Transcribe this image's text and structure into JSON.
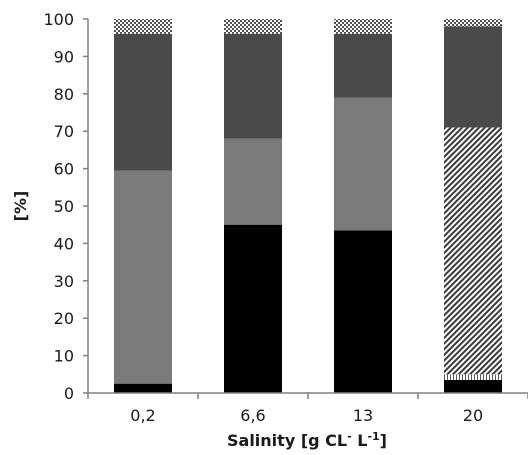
{
  "chart_data": {
    "type": "bar",
    "stacked": true,
    "categories": [
      "0,2",
      "6,6",
      "13",
      "20"
    ],
    "series": [
      {
        "values": [
          2.5,
          45,
          43.5,
          3.5
        ],
        "color": "#000000",
        "pattern": "solid"
      },
      {
        "values": [
          0,
          0,
          0,
          1.5
        ],
        "color": "#ffffff",
        "pattern": "vertical-lines"
      },
      {
        "values": [
          57,
          23,
          35.5,
          0
        ],
        "color": "#7a7a7a",
        "pattern": "solid"
      },
      {
        "values": [
          0,
          0,
          0,
          66
        ],
        "color": "#5a5a5a",
        "pattern": "diagonal-lines"
      },
      {
        "values": [
          36.5,
          28,
          17,
          27
        ],
        "color": "#4a4a4a",
        "pattern": "solid"
      },
      {
        "values": [
          4,
          4,
          4,
          2
        ],
        "color": "#6e6e6e",
        "pattern": "crosshatch"
      }
    ],
    "yticks": [
      "0",
      "10",
      "20",
      "30",
      "40",
      "50",
      "60",
      "70",
      "80",
      "90",
      "100"
    ],
    "ylim": [
      0,
      100
    ],
    "ylabel": "[%]",
    "xlabel": {
      "main": "Salinity [g CL",
      "sup1": "-",
      "mid": " L",
      "sup2": "-1",
      "end": "]"
    },
    "grid": false,
    "legend": "none"
  }
}
